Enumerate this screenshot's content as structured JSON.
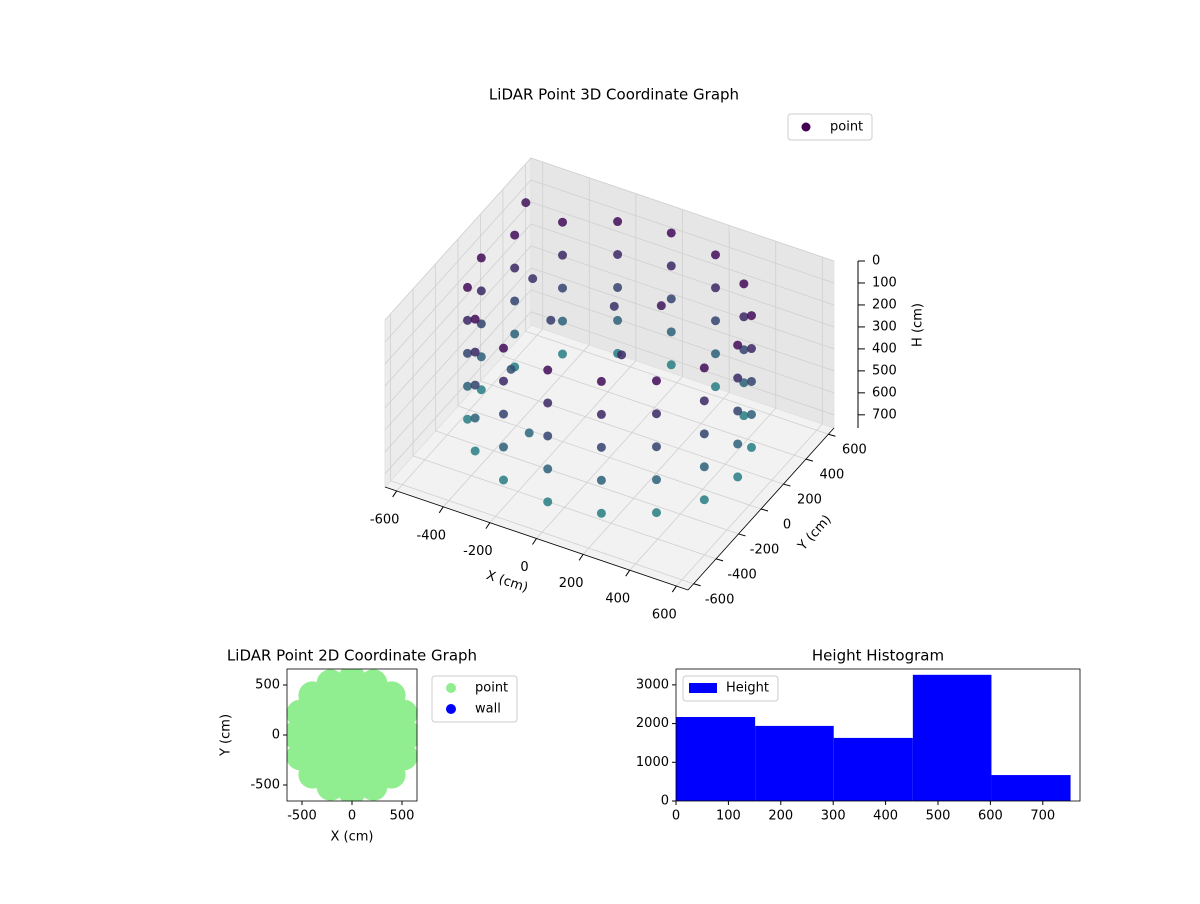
{
  "chart_data": [
    {
      "type": "scatter3d",
      "title": "LiDAR Point 3D Coordinate Graph",
      "x_label": "X (cm)",
      "y_label": "Y (cm)",
      "z_label": "H (cm)",
      "xlim": [
        -650,
        650
      ],
      "ylim": [
        -650,
        650
      ],
      "zlim": [
        760,
        0
      ],
      "xticks": [
        -600,
        -400,
        -200,
        0,
        200,
        400,
        600
      ],
      "yticks": [
        -600,
        -400,
        -200,
        0,
        200,
        400,
        600
      ],
      "zticks": [
        0,
        100,
        200,
        300,
        400,
        500,
        600,
        700
      ],
      "cmap": [
        "#440154",
        "#21918c"
      ],
      "legend": "upper right",
      "series": [
        {
          "name": "point",
          "color": "#440154",
          "x": [
            550,
            550,
            550,
            550,
            550,
            508,
            508,
            508,
            508,
            508,
            389,
            389,
            389,
            389,
            389,
            210,
            210,
            210,
            210,
            210,
            0,
            0,
            0,
            0,
            0,
            -210,
            -210,
            -210,
            -210,
            -210,
            -389,
            -389,
            -389,
            -389,
            -389,
            -508,
            -508,
            -508,
            -508,
            -508,
            -550,
            -550,
            -550,
            -550,
            -550,
            -508,
            -508,
            -508,
            -508,
            -508,
            -389,
            -389,
            -389,
            -389,
            -389,
            -210,
            -210,
            -210,
            -210,
            -210,
            0,
            0,
            0,
            0,
            0,
            210,
            210,
            210,
            210,
            210,
            389,
            389,
            389,
            389,
            389,
            508,
            508,
            508,
            508,
            508,
            -100,
            150,
            -300,
            -450,
            -350,
            -200,
            100,
            -600
          ],
          "y": [
            0,
            0,
            0,
            0,
            0,
            210,
            210,
            210,
            210,
            210,
            389,
            389,
            389,
            389,
            389,
            508,
            508,
            508,
            508,
            508,
            550,
            550,
            550,
            550,
            550,
            508,
            508,
            508,
            508,
            508,
            389,
            389,
            389,
            389,
            389,
            210,
            210,
            210,
            210,
            210,
            0,
            0,
            0,
            0,
            0,
            -210,
            -210,
            -210,
            -210,
            -210,
            -389,
            -389,
            -389,
            -389,
            -389,
            -508,
            -508,
            -508,
            -508,
            -508,
            -550,
            -550,
            -550,
            -550,
            -550,
            -508,
            -508,
            -508,
            -508,
            -508,
            -389,
            -389,
            -389,
            -389,
            -389,
            -210,
            -210,
            -210,
            -210,
            -210,
            250,
            150,
            100,
            250,
            -150,
            -300,
            -100,
            500
          ],
          "values": [
            50,
            200,
            350,
            500,
            650,
            50,
            200,
            350,
            500,
            650,
            50,
            200,
            350,
            500,
            650,
            50,
            200,
            350,
            500,
            650,
            50,
            200,
            350,
            500,
            650,
            50,
            200,
            350,
            500,
            650,
            50,
            200,
            350,
            500,
            650,
            50,
            200,
            350,
            500,
            650,
            50,
            200,
            350,
            500,
            650,
            50,
            200,
            350,
            500,
            650,
            50,
            200,
            350,
            500,
            650,
            50,
            200,
            350,
            500,
            650,
            50,
            200,
            350,
            500,
            650,
            50,
            200,
            350,
            500,
            650,
            50,
            200,
            350,
            500,
            650,
            50,
            200,
            350,
            500,
            650,
            250,
            100,
            300,
            250,
            400,
            550,
            200,
            100
          ]
        }
      ]
    },
    {
      "type": "scatter",
      "title": "LiDAR Point 2D Coordinate Graph",
      "x_label": "X (cm)",
      "y_label": "Y (cm)",
      "xlim": [
        -650,
        650
      ],
      "ylim": [
        -660,
        660
      ],
      "xticks": [
        -500,
        0,
        500
      ],
      "yticks": [
        -500,
        0,
        500
      ],
      "legend": "outside right",
      "series": [
        {
          "name": "point",
          "color": "#90ee90",
          "x": [
            0,
            200,
            100,
            -100,
            -200,
            -100,
            100,
            400,
            346,
            200,
            0,
            -200,
            -346,
            -400,
            -346,
            -200,
            0,
            200,
            346,
            560,
            517,
            396,
            214,
            0,
            -214,
            -396,
            -517,
            -560,
            -517,
            -396,
            -214,
            0,
            214,
            396,
            517
          ],
          "values": [
            0,
            0,
            173,
            173,
            0,
            -173,
            -173,
            0,
            200,
            346,
            400,
            346,
            200,
            0,
            -200,
            -346,
            -400,
            -346,
            -200,
            0,
            214,
            396,
            517,
            560,
            517,
            396,
            214,
            0,
            -214,
            -396,
            -517,
            -560,
            -517,
            -396,
            -214
          ]
        },
        {
          "name": "wall",
          "color": "#0000ff",
          "x": [],
          "values": []
        }
      ]
    },
    {
      "type": "histogram",
      "title": "Height Histogram",
      "xlim": [
        0,
        771
      ],
      "ylim": [
        0,
        3410
      ],
      "xticks": [
        0,
        100,
        200,
        300,
        400,
        500,
        600,
        700
      ],
      "yticks": [
        0,
        1000,
        2000,
        3000
      ],
      "legend": "upper left",
      "series": [
        {
          "name": "Height",
          "color": "#0000ff",
          "bins": [
            0,
            151,
            301,
            452,
            602,
            753
          ],
          "values": [
            2170,
            1940,
            1630,
            3260,
            670
          ]
        }
      ]
    }
  ]
}
